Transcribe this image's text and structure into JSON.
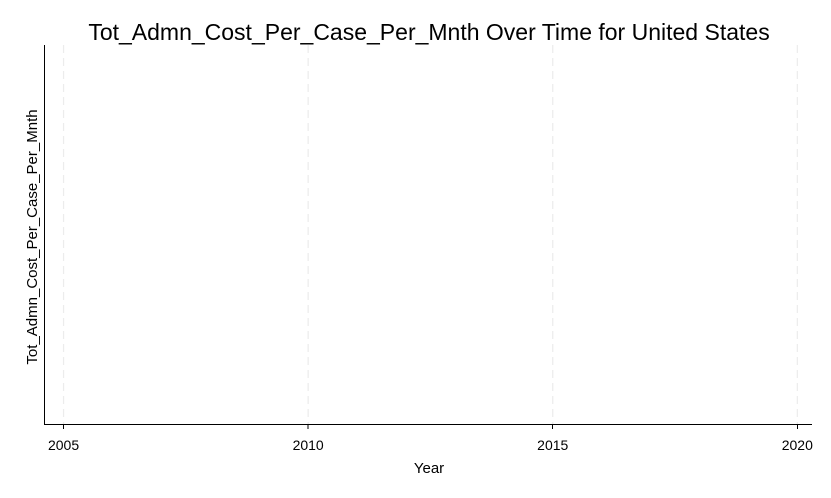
{
  "chart_data": {
    "type": "line",
    "title": "Tot_Admn_Cost_Per_Case_Per_Mnth Over Time for United States",
    "xlabel": "Year",
    "ylabel": "Tot_Admn_Cost_Per_Case_Per_Mnth",
    "xlim": [
      2004.6,
      2020.3
    ],
    "x_ticks": [
      2005,
      2010,
      2015,
      2020
    ],
    "x_tick_labels": [
      "2005",
      "2010",
      "2015",
      "2020"
    ],
    "y_ticks": [],
    "series": [],
    "grid": "vertical dashed",
    "legend": "none"
  }
}
